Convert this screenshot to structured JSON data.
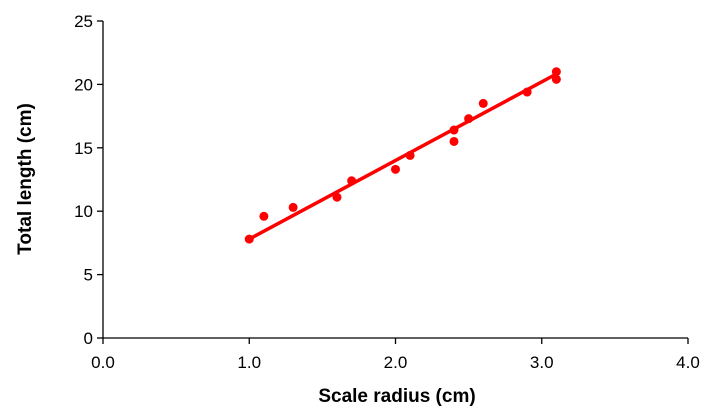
{
  "chart_data": {
    "type": "scatter",
    "title": "",
    "xlabel": "Scale radius (cm)",
    "ylabel": "Total length (cm)",
    "xlim": [
      0,
      4
    ],
    "ylim": [
      0,
      25
    ],
    "x_ticks": [
      0,
      1,
      2,
      3,
      4
    ],
    "x_tick_labels": [
      "0.0",
      "1.0",
      "2.0",
      "3.0",
      "4.0"
    ],
    "y_ticks": [
      0,
      5,
      10,
      15,
      20,
      25
    ],
    "y_tick_labels": [
      "0",
      "5",
      "10",
      "15",
      "20",
      "25"
    ],
    "grid": false,
    "legend": "none",
    "series": [
      {
        "color": "#ff0000",
        "points": [
          {
            "x": 1.0,
            "y": 7.8
          },
          {
            "x": 1.1,
            "y": 9.6
          },
          {
            "x": 1.3,
            "y": 10.3
          },
          {
            "x": 1.6,
            "y": 11.1
          },
          {
            "x": 1.7,
            "y": 12.4
          },
          {
            "x": 2.0,
            "y": 13.3
          },
          {
            "x": 2.1,
            "y": 14.4
          },
          {
            "x": 2.4,
            "y": 15.5
          },
          {
            "x": 2.4,
            "y": 16.4
          },
          {
            "x": 2.5,
            "y": 17.3
          },
          {
            "x": 2.6,
            "y": 18.5
          },
          {
            "x": 2.9,
            "y": 19.4
          },
          {
            "x": 3.1,
            "y": 20.4
          },
          {
            "x": 3.1,
            "y": 21.0
          }
        ]
      }
    ],
    "trendline": {
      "type": "linear",
      "color": "#ff0000",
      "x_range": [
        1.0,
        3.1
      ],
      "slope": 6.2,
      "intercept": 1.6
    }
  }
}
